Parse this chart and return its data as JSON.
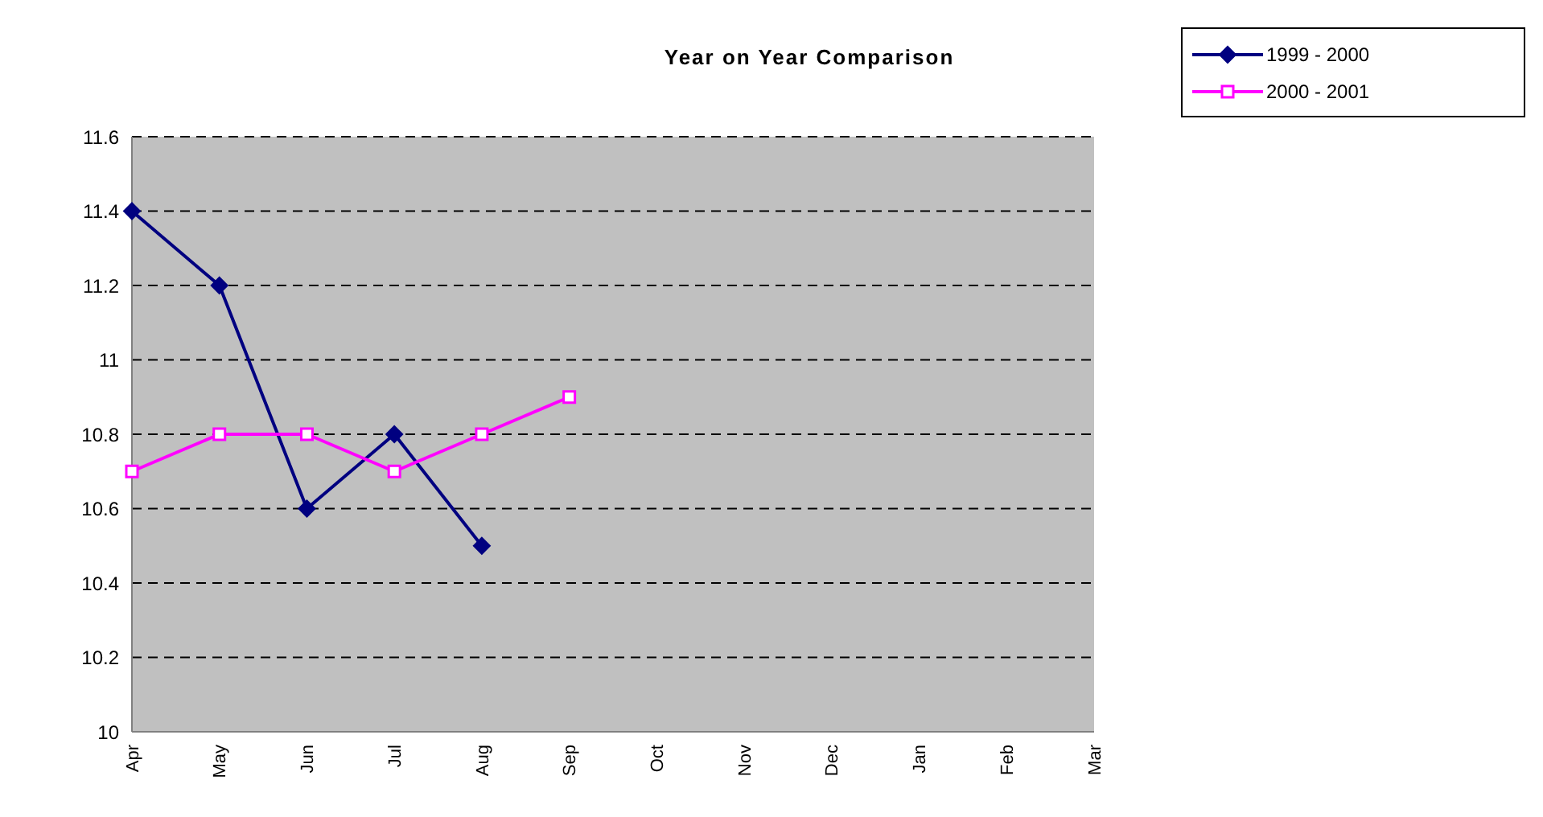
{
  "chart_data": {
    "type": "line",
    "title": "Year on Year Comparison",
    "categories": [
      "Apr",
      "May",
      "Jun",
      "Jul",
      "Aug",
      "Sep",
      "Oct",
      "Nov",
      "Dec",
      "Jan",
      "Feb",
      "Mar"
    ],
    "series": [
      {
        "name": "1999 - 2000",
        "color": "#000080",
        "marker": "diamond",
        "values": [
          11.4,
          11.2,
          10.6,
          10.8,
          10.5,
          null,
          null,
          null,
          null,
          null,
          null,
          null
        ]
      },
      {
        "name": "2000 - 2001",
        "color": "#ff00ff",
        "marker": "square",
        "values": [
          10.7,
          10.8,
          10.8,
          10.7,
          10.8,
          10.9,
          null,
          null,
          null,
          null,
          null,
          null
        ]
      }
    ],
    "ylim": [
      10,
      11.6
    ],
    "yticks": [
      10,
      10.2,
      10.4,
      10.6,
      10.8,
      11,
      11.2,
      11.4,
      11.6
    ],
    "grid": "y",
    "legend": "top right",
    "line_style": "solid"
  }
}
